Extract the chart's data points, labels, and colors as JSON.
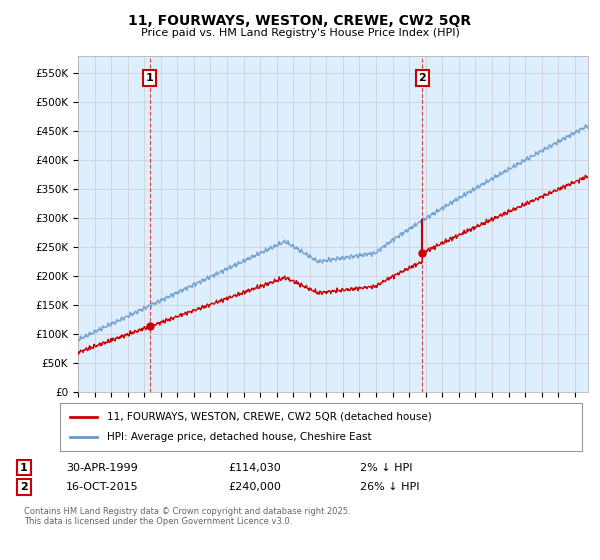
{
  "title": "11, FOURWAYS, WESTON, CREWE, CW2 5QR",
  "subtitle": "Price paid vs. HM Land Registry's House Price Index (HPI)",
  "ylabel_ticks": [
    "£0",
    "£50K",
    "£100K",
    "£150K",
    "£200K",
    "£250K",
    "£300K",
    "£350K",
    "£400K",
    "£450K",
    "£500K",
    "£550K"
  ],
  "ytick_vals": [
    0,
    50000,
    100000,
    150000,
    200000,
    250000,
    300000,
    350000,
    400000,
    450000,
    500000,
    550000
  ],
  "ylim": [
    0,
    580000
  ],
  "xlim_start": 1995.0,
  "xlim_end": 2025.8,
  "legend_label_red": "11, FOURWAYS, WESTON, CREWE, CW2 5QR (detached house)",
  "legend_label_blue": "HPI: Average price, detached house, Cheshire East",
  "marker1_x": 1999.33,
  "marker1_y": 114030,
  "marker1_label": "1",
  "marker1_date": "30-APR-1999",
  "marker1_price": "£114,030",
  "marker1_hpi": "2% ↓ HPI",
  "marker2_x": 2015.79,
  "marker2_y": 240000,
  "marker2_label": "2",
  "marker2_date": "16-OCT-2015",
  "marker2_price": "£240,000",
  "marker2_hpi": "26% ↓ HPI",
  "red_color": "#cc0000",
  "blue_color": "#6699cc",
  "vline_color": "#cc0000",
  "grid_color": "#cccccc",
  "chart_bg_color": "#ddeeff",
  "background_color": "#ffffff",
  "footer_text": "Contains HM Land Registry data © Crown copyright and database right 2025.\nThis data is licensed under the Open Government Licence v3.0.",
  "figsize": [
    6.0,
    5.6
  ],
  "dpi": 100
}
